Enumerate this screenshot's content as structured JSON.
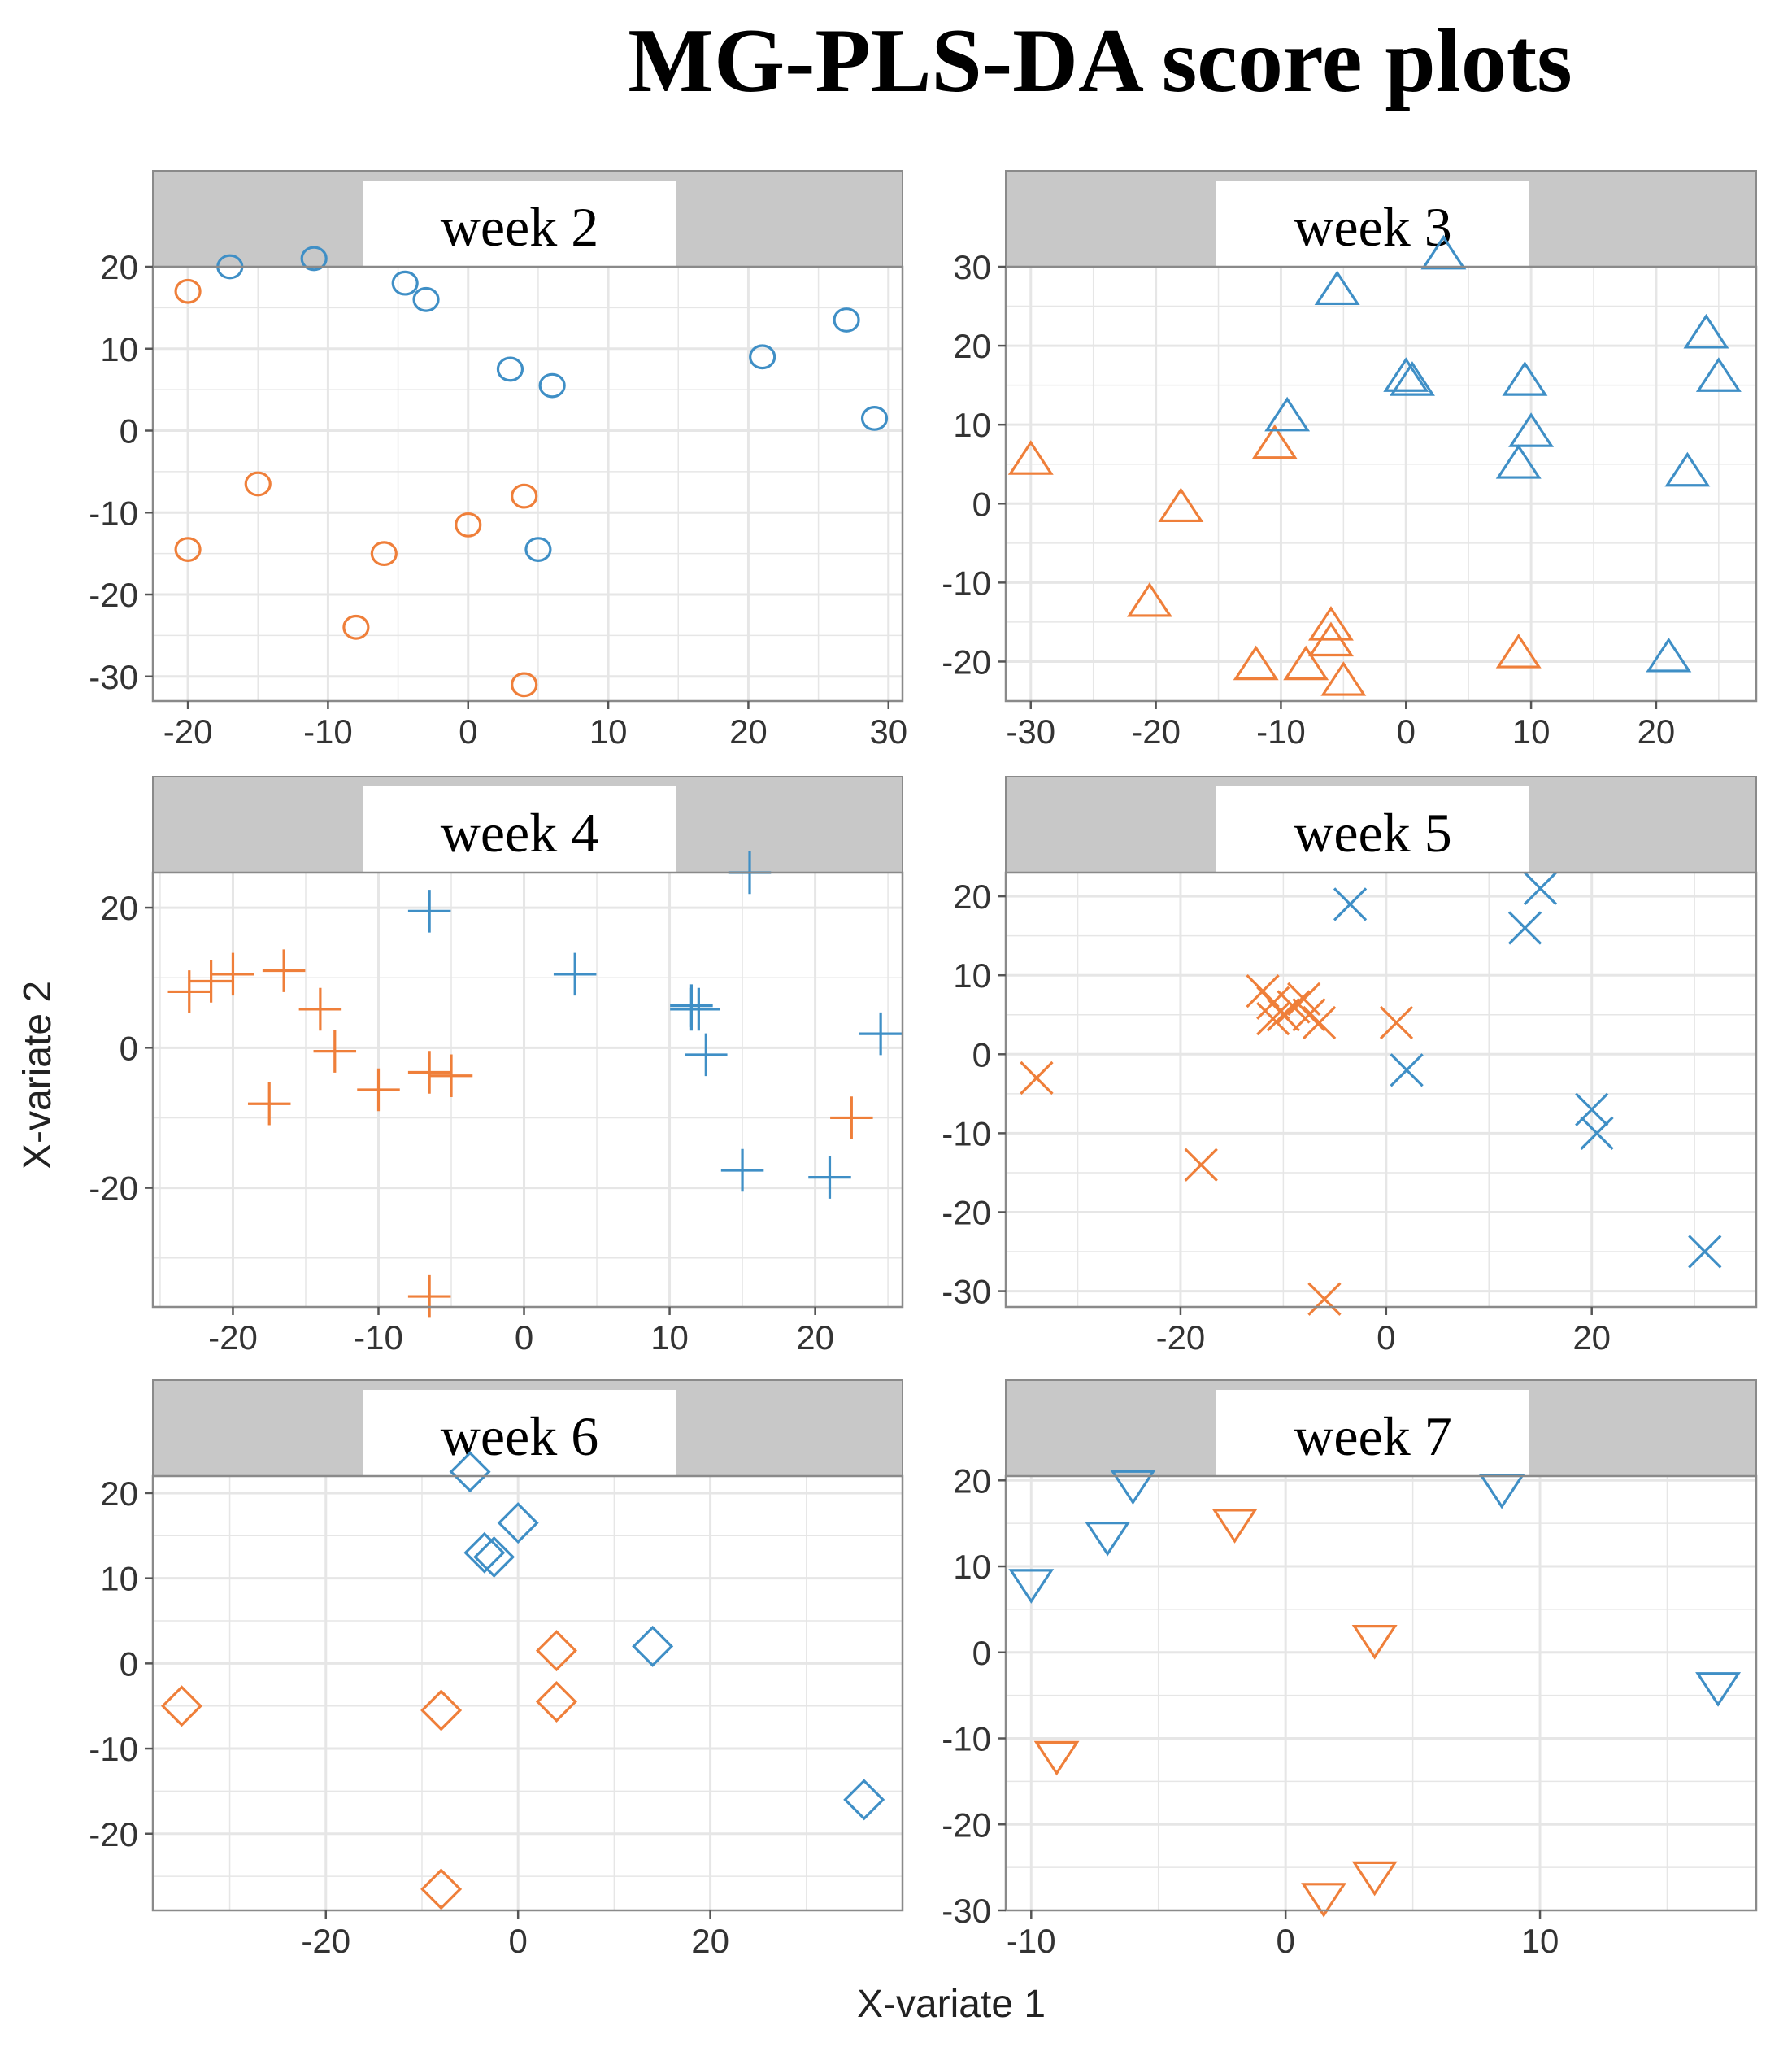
{
  "title": "MG-PLS-DA score plots",
  "colors": {
    "orange": "#ef7f3a",
    "blue": "#3f8fc6",
    "strip": "#c8c8c8",
    "grid": "#e6e6e6",
    "panel_border": "#8a8a8a"
  },
  "chart_data": {
    "type": "scatter",
    "title": "MG-PLS-DA score plots",
    "xlabel": "X-variate 1",
    "ylabel": "X-variate 2",
    "grid": true,
    "panels": [
      {
        "label": "week 2",
        "marker": "circle",
        "xlim": [
          -22.5,
          31
        ],
        "ylim": [
          -33,
          20
        ],
        "xticks": [
          -20,
          -10,
          0,
          10,
          20,
          30
        ],
        "yticks": [
          20,
          10,
          0,
          -10,
          -20,
          -30
        ],
        "series": [
          {
            "color": "orange",
            "points": [
              [
                -20,
                17
              ],
              [
                -15,
                -6.5
              ],
              [
                -20,
                -14.5
              ],
              [
                -6,
                -15
              ],
              [
                0,
                -11.5
              ],
              [
                4,
                -8
              ],
              [
                -8,
                -24
              ],
              [
                4,
                -31
              ]
            ]
          },
          {
            "color": "blue",
            "points": [
              [
                -17,
                20
              ],
              [
                -11,
                21
              ],
              [
                -4.5,
                18
              ],
              [
                -3,
                16
              ],
              [
                3,
                7.5
              ],
              [
                6,
                5.5
              ],
              [
                21,
                9
              ],
              [
                27,
                13.5
              ],
              [
                29,
                1.5
              ],
              [
                5,
                -14.5
              ]
            ]
          }
        ]
      },
      {
        "label": "week 3",
        "marker": "triangle-up",
        "xlim": [
          -32,
          28
        ],
        "ylim": [
          -25,
          30
        ],
        "xticks": [
          -30,
          -20,
          -10,
          0,
          10,
          20
        ],
        "yticks": [
          30,
          20,
          10,
          0,
          -10,
          -20
        ],
        "series": [
          {
            "color": "orange",
            "points": [
              [
                -30,
                5.5
              ],
              [
                -18,
                -0.5
              ],
              [
                -10.5,
                7.5
              ],
              [
                -20.5,
                -12.5
              ],
              [
                -12,
                -20.5
              ],
              [
                -8,
                -20.5
              ],
              [
                -6,
                -15.5
              ],
              [
                -6,
                -17.5
              ],
              [
                -5,
                -22.5
              ],
              [
                9,
                -19
              ]
            ]
          },
          {
            "color": "blue",
            "points": [
              [
                -5.5,
                27
              ],
              [
                3,
                31.5
              ],
              [
                -9.5,
                11
              ],
              [
                0,
                16
              ],
              [
                0.5,
                15.5
              ],
              [
                9.5,
                15.5
              ],
              [
                10,
                9
              ],
              [
                9,
                5
              ],
              [
                24,
                21.5
              ],
              [
                25,
                16
              ],
              [
                22.5,
                4
              ],
              [
                21,
                -19.5
              ]
            ]
          }
        ]
      },
      {
        "label": "week 4",
        "marker": "plus",
        "xlim": [
          -25.5,
          26
        ],
        "ylim": [
          -37,
          25
        ],
        "xticks": [
          -20,
          -10,
          0,
          10,
          20
        ],
        "yticks": [
          20,
          0,
          -20
        ],
        "series": [
          {
            "color": "orange",
            "points": [
              [
                -23,
                8
              ],
              [
                -21.5,
                9.5
              ],
              [
                -20,
                10.5
              ],
              [
                -16.5,
                11
              ],
              [
                -14,
                5.5
              ],
              [
                -13,
                -0.5
              ],
              [
                -10,
                -6
              ],
              [
                -17.5,
                -8
              ],
              [
                -6.5,
                -3.5
              ],
              [
                -5,
                -4
              ],
              [
                -6.5,
                -35.5
              ],
              [
                22.5,
                -10
              ]
            ]
          },
          {
            "color": "blue",
            "points": [
              [
                -6.5,
                19.5
              ],
              [
                3.5,
                10.5
              ],
              [
                11.5,
                6
              ],
              [
                11.5,
                5.5
              ],
              [
                12,
                5.5
              ],
              [
                12.5,
                -1
              ],
              [
                15.5,
                25
              ],
              [
                24.5,
                2
              ],
              [
                15,
                -17.5
              ],
              [
                21,
                -18.5
              ]
            ]
          }
        ]
      },
      {
        "label": "week 5",
        "marker": "cross",
        "xlim": [
          -37,
          36
        ],
        "ylim": [
          -32,
          23
        ],
        "xticks": [
          -20,
          0,
          20
        ],
        "yticks": [
          20,
          10,
          0,
          -10,
          -20,
          -30
        ],
        "series": [
          {
            "color": "orange",
            "points": [
              [
                -34,
                -3
              ],
              [
                -12,
                8
              ],
              [
                -11,
                6.5
              ],
              [
                -10,
                5
              ],
              [
                -11,
                4.5
              ],
              [
                -8,
                7
              ],
              [
                -9,
                6
              ],
              [
                -7.5,
                5
              ],
              [
                -6.5,
                4
              ],
              [
                1,
                4
              ],
              [
                -18,
                -14
              ],
              [
                -6,
                -31
              ]
            ]
          },
          {
            "color": "blue",
            "points": [
              [
                -3.5,
                19
              ],
              [
                13.5,
                16
              ],
              [
                15,
                21
              ],
              [
                2,
                -2
              ],
              [
                20,
                -7
              ],
              [
                20.5,
                -10
              ],
              [
                31,
                -25
              ]
            ]
          }
        ]
      },
      {
        "label": "week 6",
        "marker": "diamond",
        "xlim": [
          -38,
          40
        ],
        "ylim": [
          -29,
          22
        ],
        "xticks": [
          -20,
          0,
          20
        ],
        "yticks": [
          20,
          10,
          0,
          -10,
          -20
        ],
        "series": [
          {
            "color": "orange",
            "points": [
              [
                -35,
                -5
              ],
              [
                -8,
                -5.5
              ],
              [
                4,
                1.5
              ],
              [
                4,
                -4.5
              ],
              [
                -8,
                -26.5
              ]
            ]
          },
          {
            "color": "blue",
            "points": [
              [
                -5,
                22.5
              ],
              [
                -3.5,
                13
              ],
              [
                -2.5,
                12.5
              ],
              [
                0,
                16.5
              ],
              [
                14,
                2
              ],
              [
                36,
                -16
              ]
            ]
          }
        ]
      },
      {
        "label": "week 7",
        "marker": "triangle-down",
        "xlim": [
          -11,
          18.5
        ],
        "ylim": [
          -30,
          20.5
        ],
        "xticks": [
          -10,
          0,
          10
        ],
        "yticks": [
          20,
          10,
          0,
          -10,
          -20,
          -30
        ],
        "series": [
          {
            "color": "orange",
            "points": [
              [
                -2,
                15
              ],
              [
                3.5,
                1.5
              ],
              [
                -9,
                -12
              ],
              [
                1.5,
                -28.5
              ],
              [
                3.5,
                -26
              ]
            ]
          },
          {
            "color": "blue",
            "points": [
              [
                -10,
                8
              ],
              [
                -7,
                13.5
              ],
              [
                -6,
                19.5
              ],
              [
                8.5,
                19
              ],
              [
                17,
                -4
              ]
            ]
          }
        ]
      }
    ]
  }
}
